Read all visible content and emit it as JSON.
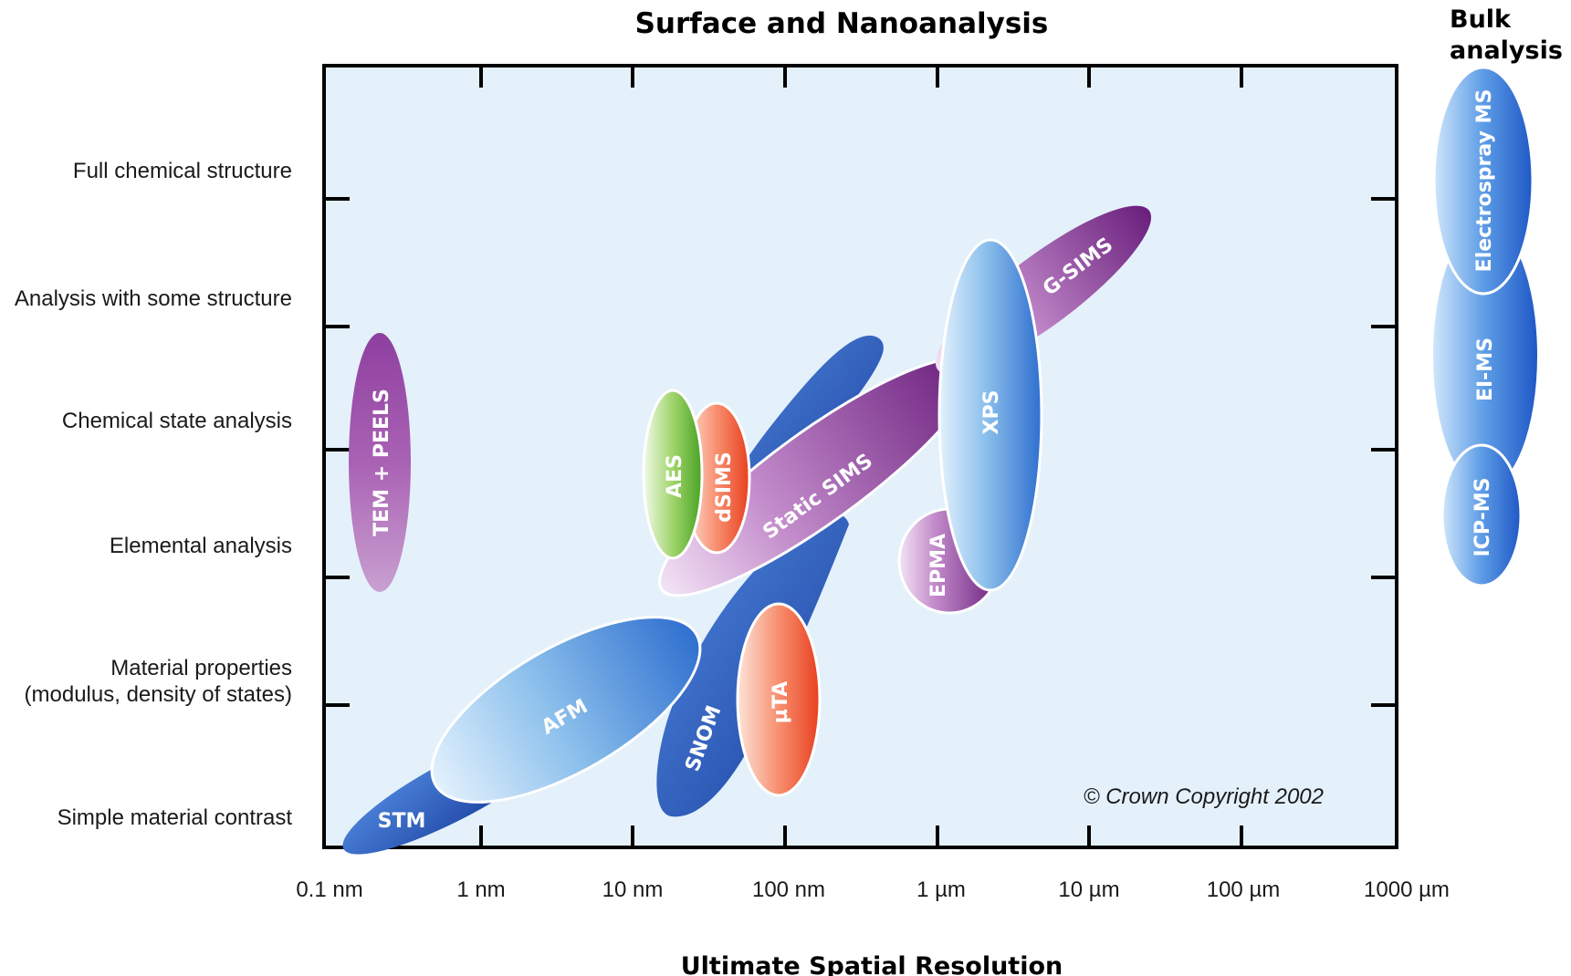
{
  "title": "Surface and Nanoanalysis",
  "bulk_title_line1": "Bulk",
  "bulk_title_line2": "analysis",
  "x_axis_label": "Ultimate Spatial Resolution",
  "copyright": "© Crown Copyright 2002",
  "x_ticks": [
    "0.1 nm",
    "1 nm",
    "10 nm",
    "100 nm",
    "1 µm",
    "10 µm",
    "100 µm",
    "1000 µm"
  ],
  "y_levels": [
    {
      "lines": [
        "Full chemical structure"
      ]
    },
    {
      "lines": [
        "Analysis with some structure"
      ]
    },
    {
      "lines": [
        "Chemical state analysis"
      ]
    },
    {
      "lines": [
        "Elemental analysis"
      ]
    },
    {
      "lines": [
        "Material properties",
        "(modulus, density of states)"
      ]
    },
    {
      "lines": [
        "Simple material contrast"
      ]
    }
  ],
  "techniques": [
    {
      "label": "TEM + PEELS",
      "color": "purple"
    },
    {
      "label": "AES",
      "color": "green"
    },
    {
      "label": "dSIMS",
      "color": "red"
    },
    {
      "label": "Static SIMS",
      "color": "purple"
    },
    {
      "label": "G-SIMS",
      "color": "purple"
    },
    {
      "label": "XPS",
      "color": "blue"
    },
    {
      "label": "EPMA",
      "color": "purple"
    },
    {
      "label": "AFM",
      "color": "blue"
    },
    {
      "label": "STM",
      "color": "darkblue"
    },
    {
      "label": "SNOM",
      "color": "darkblue"
    },
    {
      "label": "µTA",
      "color": "red"
    },
    {
      "label": "Electrospray MS",
      "color": "blue"
    },
    {
      "label": "EI-MS",
      "color": "blue"
    },
    {
      "label": "ICP-MS",
      "color": "blue"
    }
  ],
  "colors": {
    "plot_bg": "#e4f1fb",
    "purple": "#7a2d8c",
    "blue": "#2f7ad6",
    "darkblue": "#1f4fb0",
    "green": "#6abf3a",
    "red": "#f0573a"
  }
}
